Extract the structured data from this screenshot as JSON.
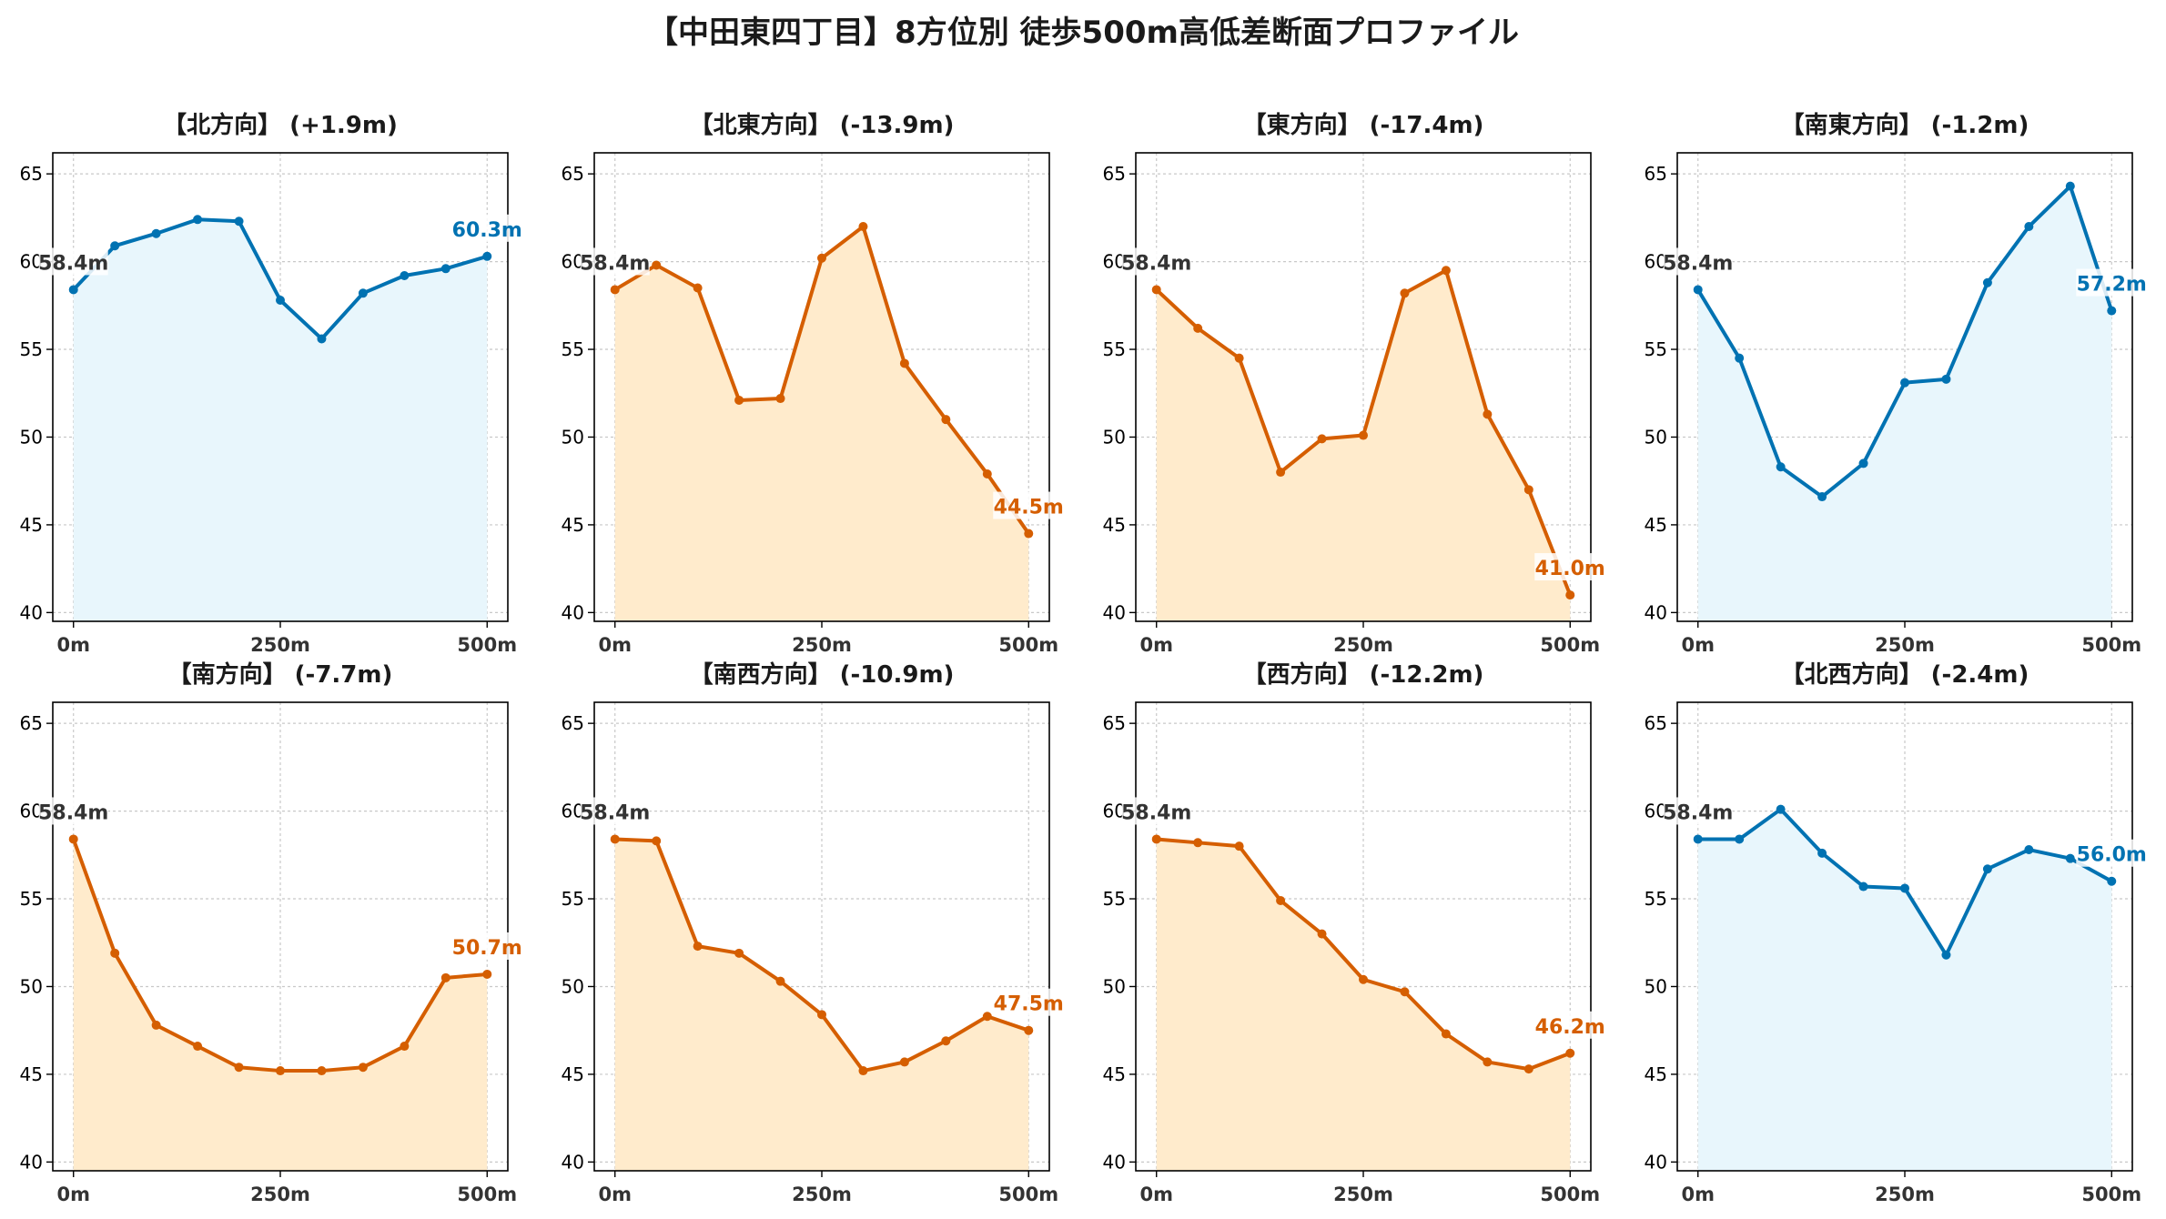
{
  "title": "【中田東四丁目】8方位別 徒歩500m高低差断面プロファイル",
  "colors": {
    "up": "#0072B2",
    "up_fill": "#E8F6FC",
    "down": "#D55E00",
    "down_fill": "#FFEBCC",
    "start_label": "#333333"
  },
  "chart_data": [
    {
      "type": "area",
      "title": "【北方向】 (+1.9m)",
      "trend": "up",
      "x": [
        0,
        50,
        100,
        150,
        200,
        250,
        300,
        350,
        400,
        450,
        500
      ],
      "values": [
        58.4,
        60.9,
        61.6,
        62.4,
        62.3,
        57.8,
        55.6,
        58.2,
        59.2,
        59.6,
        60.3
      ],
      "start_label": "58.4m",
      "end_label": "60.3m",
      "xticks": [
        "0m",
        "250m",
        "500m"
      ],
      "yticks": [
        40,
        45,
        50,
        55,
        60,
        65
      ],
      "ylim": [
        39.5,
        66.2
      ],
      "grid": true
    },
    {
      "type": "area",
      "title": "【北東方向】 (-13.9m)",
      "trend": "down",
      "x": [
        0,
        50,
        100,
        150,
        200,
        250,
        300,
        350,
        400,
        450,
        500
      ],
      "values": [
        58.4,
        59.8,
        58.5,
        52.1,
        52.2,
        60.2,
        62.0,
        54.2,
        51.0,
        47.9,
        44.5
      ],
      "start_label": "58.4m",
      "end_label": "44.5m",
      "xticks": [
        "0m",
        "250m",
        "500m"
      ],
      "yticks": [
        40,
        45,
        50,
        55,
        60,
        65
      ],
      "ylim": [
        39.5,
        66.2
      ],
      "grid": true
    },
    {
      "type": "area",
      "title": "【東方向】 (-17.4m)",
      "trend": "down",
      "x": [
        0,
        50,
        100,
        150,
        200,
        250,
        300,
        350,
        400,
        450,
        500
      ],
      "values": [
        58.4,
        56.2,
        54.5,
        48.0,
        49.9,
        50.1,
        58.2,
        59.5,
        51.3,
        47.0,
        41.0
      ],
      "start_label": "58.4m",
      "end_label": "41.0m",
      "xticks": [
        "0m",
        "250m",
        "500m"
      ],
      "yticks": [
        40,
        45,
        50,
        55,
        60,
        65
      ],
      "ylim": [
        39.5,
        66.2
      ],
      "grid": true
    },
    {
      "type": "area",
      "title": "【南東方向】 (-1.2m)",
      "trend": "up",
      "x": [
        0,
        50,
        100,
        150,
        200,
        250,
        300,
        350,
        400,
        450,
        500
      ],
      "values": [
        58.4,
        54.5,
        48.3,
        46.6,
        48.5,
        53.1,
        53.3,
        58.8,
        62.0,
        64.3,
        57.2
      ],
      "start_label": "58.4m",
      "end_label": "57.2m",
      "xticks": [
        "0m",
        "250m",
        "500m"
      ],
      "yticks": [
        40,
        45,
        50,
        55,
        60,
        65
      ],
      "ylim": [
        39.5,
        66.2
      ],
      "grid": true
    },
    {
      "type": "area",
      "title": "【南方向】 (-7.7m)",
      "trend": "down",
      "x": [
        0,
        50,
        100,
        150,
        200,
        250,
        300,
        350,
        400,
        450,
        500
      ],
      "values": [
        58.4,
        51.9,
        47.8,
        46.6,
        45.4,
        45.2,
        45.2,
        45.4,
        46.6,
        50.5,
        50.7
      ],
      "start_label": "58.4m",
      "end_label": "50.7m",
      "xticks": [
        "0m",
        "250m",
        "500m"
      ],
      "yticks": [
        40,
        45,
        50,
        55,
        60,
        65
      ],
      "ylim": [
        39.5,
        66.2
      ],
      "grid": true
    },
    {
      "type": "area",
      "title": "【南西方向】 (-10.9m)",
      "trend": "down",
      "x": [
        0,
        50,
        100,
        150,
        200,
        250,
        300,
        350,
        400,
        450,
        500
      ],
      "values": [
        58.4,
        58.3,
        52.3,
        51.9,
        50.3,
        48.4,
        45.2,
        45.7,
        46.9,
        48.3,
        47.5
      ],
      "start_label": "58.4m",
      "end_label": "47.5m",
      "xticks": [
        "0m",
        "250m",
        "500m"
      ],
      "yticks": [
        40,
        45,
        50,
        55,
        60,
        65
      ],
      "ylim": [
        39.5,
        66.2
      ],
      "grid": true
    },
    {
      "type": "area",
      "title": "【西方向】 (-12.2m)",
      "trend": "down",
      "x": [
        0,
        50,
        100,
        150,
        200,
        250,
        300,
        350,
        400,
        450,
        500
      ],
      "values": [
        58.4,
        58.2,
        58.0,
        54.9,
        53.0,
        50.4,
        49.7,
        47.3,
        45.7,
        45.3,
        46.2
      ],
      "start_label": "58.4m",
      "end_label": "46.2m",
      "xticks": [
        "0m",
        "250m",
        "500m"
      ],
      "yticks": [
        40,
        45,
        50,
        55,
        60,
        65
      ],
      "ylim": [
        39.5,
        66.2
      ],
      "grid": true
    },
    {
      "type": "area",
      "title": "【北西方向】 (-2.4m)",
      "trend": "up",
      "x": [
        0,
        50,
        100,
        150,
        200,
        250,
        300,
        350,
        400,
        450,
        500
      ],
      "values": [
        58.4,
        58.4,
        60.1,
        57.6,
        55.7,
        55.6,
        51.8,
        56.7,
        57.8,
        57.3,
        56.0
      ],
      "start_label": "58.4m",
      "end_label": "56.0m",
      "xticks": [
        "0m",
        "250m",
        "500m"
      ],
      "yticks": [
        40,
        45,
        50,
        55,
        60,
        65
      ],
      "ylim": [
        39.5,
        66.2
      ],
      "grid": true
    }
  ]
}
